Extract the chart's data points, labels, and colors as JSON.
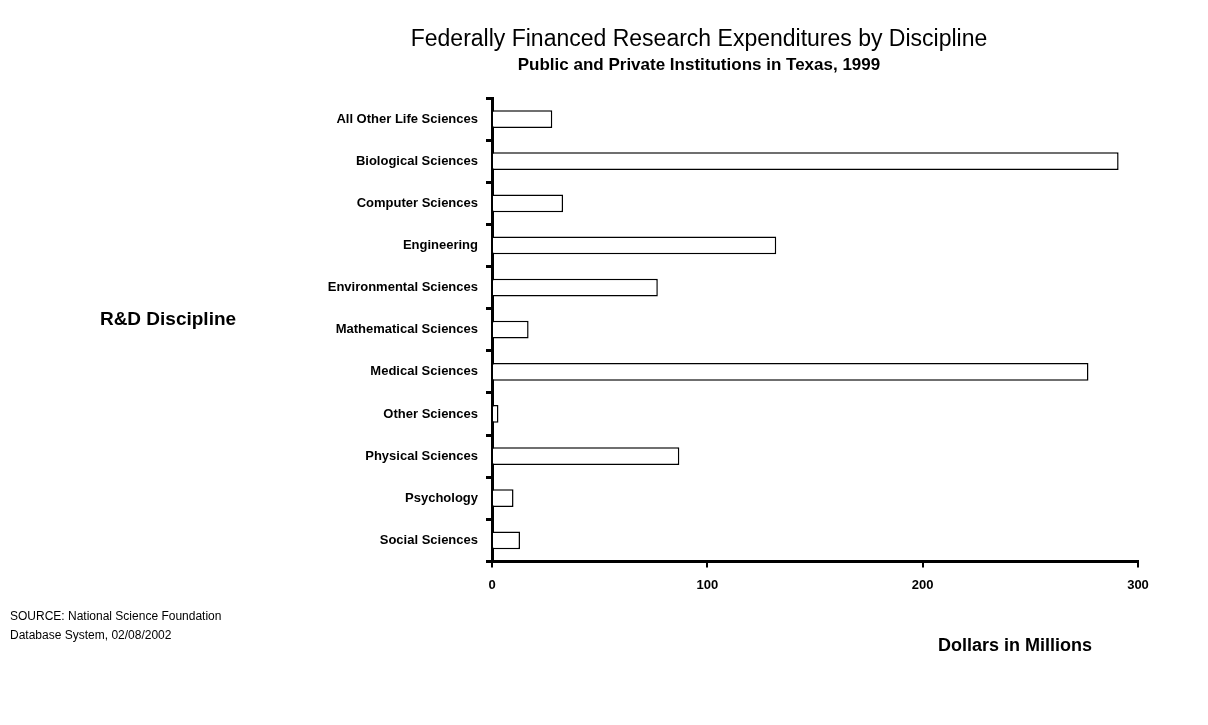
{
  "chart_data": {
    "type": "bar",
    "orientation": "horizontal",
    "title": "Federally Financed Research Expenditures by Discipline",
    "subtitle": "Public and Private Institutions in Texas, 1999",
    "xlabel": "Dollars in Millions",
    "ylabel": "R&D Discipline",
    "categories": [
      "All Other Life Sciences",
      "Biological Sciences",
      "Computer Sciences",
      "Engineering",
      "Environmental Sciences",
      "Mathematical Sciences",
      "Medical Sciences",
      "Other Sciences",
      "Physical Sciences",
      "Psychology",
      "Social Sciences"
    ],
    "values": [
      28,
      291,
      33,
      132,
      77,
      17,
      277,
      3,
      87,
      10,
      13
    ],
    "color": "#ffffff",
    "xlim": [
      0,
      300
    ],
    "xticks": [
      0,
      100,
      200,
      300
    ],
    "grid": false,
    "legend": false,
    "annotations": [
      "SOURCE: National Science Foundation",
      "Database System, 02/08/2002"
    ]
  }
}
